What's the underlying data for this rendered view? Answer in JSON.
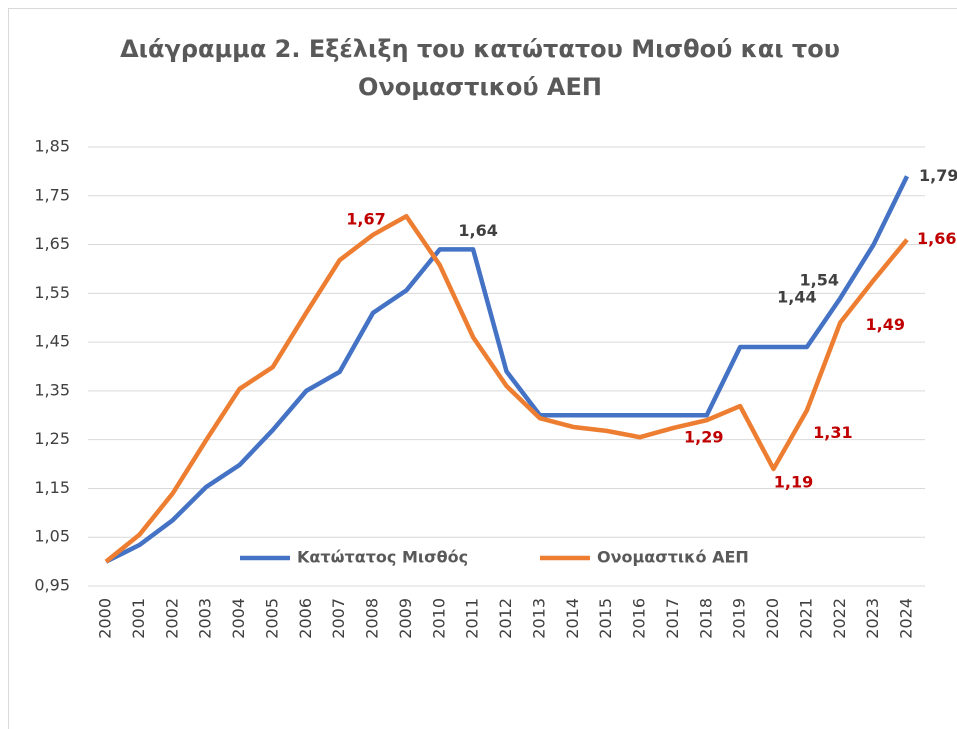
{
  "chart_data": {
    "type": "line",
    "title": "Διάγραμμα 2. Εξέλιξη του κατώτατου Μισθού και του Ονομαστικού ΑΕΠ",
    "categories": [
      "2000",
      "2001",
      "2002",
      "2003",
      "2004",
      "2005",
      "2006",
      "2007",
      "2008",
      "2009",
      "2010",
      "2011",
      "2012",
      "2013",
      "2014",
      "2015",
      "2016",
      "2017",
      "2018",
      "2019",
      "2020",
      "2021",
      "2022",
      "2023",
      "2024"
    ],
    "series": [
      {
        "name": "Κατώτατος Μισθός",
        "color": "#4472c4",
        "values": [
          1.0,
          1.034,
          1.085,
          1.153,
          1.198,
          1.27,
          1.35,
          1.389,
          1.51,
          1.556,
          1.64,
          1.64,
          1.39,
          1.3,
          1.3,
          1.3,
          1.3,
          1.3,
          1.3,
          1.44,
          1.44,
          1.44,
          1.54,
          1.65,
          1.79
        ],
        "value_labels": [
          null,
          null,
          null,
          null,
          null,
          null,
          null,
          null,
          null,
          null,
          null,
          "1,64",
          null,
          null,
          null,
          null,
          null,
          null,
          null,
          null,
          null,
          "1,44",
          "1,54",
          null,
          "1,79"
        ]
      },
      {
        "name": "Ονομαστικό ΑΕΠ",
        "color": "#ed7d31",
        "values": [
          1.0,
          1.055,
          1.14,
          1.249,
          1.354,
          1.399,
          1.51,
          1.618,
          1.67,
          1.708,
          1.608,
          1.46,
          1.36,
          1.294,
          1.276,
          1.268,
          1.255,
          1.274,
          1.29,
          1.319,
          1.19,
          1.31,
          1.49,
          1.577,
          1.66
        ],
        "value_labels": [
          null,
          null,
          null,
          null,
          null,
          null,
          null,
          null,
          "1,67",
          null,
          null,
          null,
          null,
          null,
          null,
          null,
          null,
          null,
          "1,29",
          null,
          "1,19",
          "1,31",
          "1,49",
          null,
          "1,66"
        ]
      }
    ],
    "ylim": [
      0.95,
      1.85
    ],
    "yticks": [
      {
        "value": 0.95,
        "label": "0,95"
      },
      {
        "value": 1.05,
        "label": "1,05"
      },
      {
        "value": 1.15,
        "label": "1,15"
      },
      {
        "value": 1.25,
        "label": "1,25"
      },
      {
        "value": 1.35,
        "label": "1,35"
      },
      {
        "value": 1.45,
        "label": "1,45"
      },
      {
        "value": 1.55,
        "label": "1,55"
      },
      {
        "value": 1.65,
        "label": "1,65"
      },
      {
        "value": 1.75,
        "label": "1,75"
      },
      {
        "value": 1.85,
        "label": "1,85"
      }
    ],
    "grid": true,
    "legend": "bottom"
  }
}
